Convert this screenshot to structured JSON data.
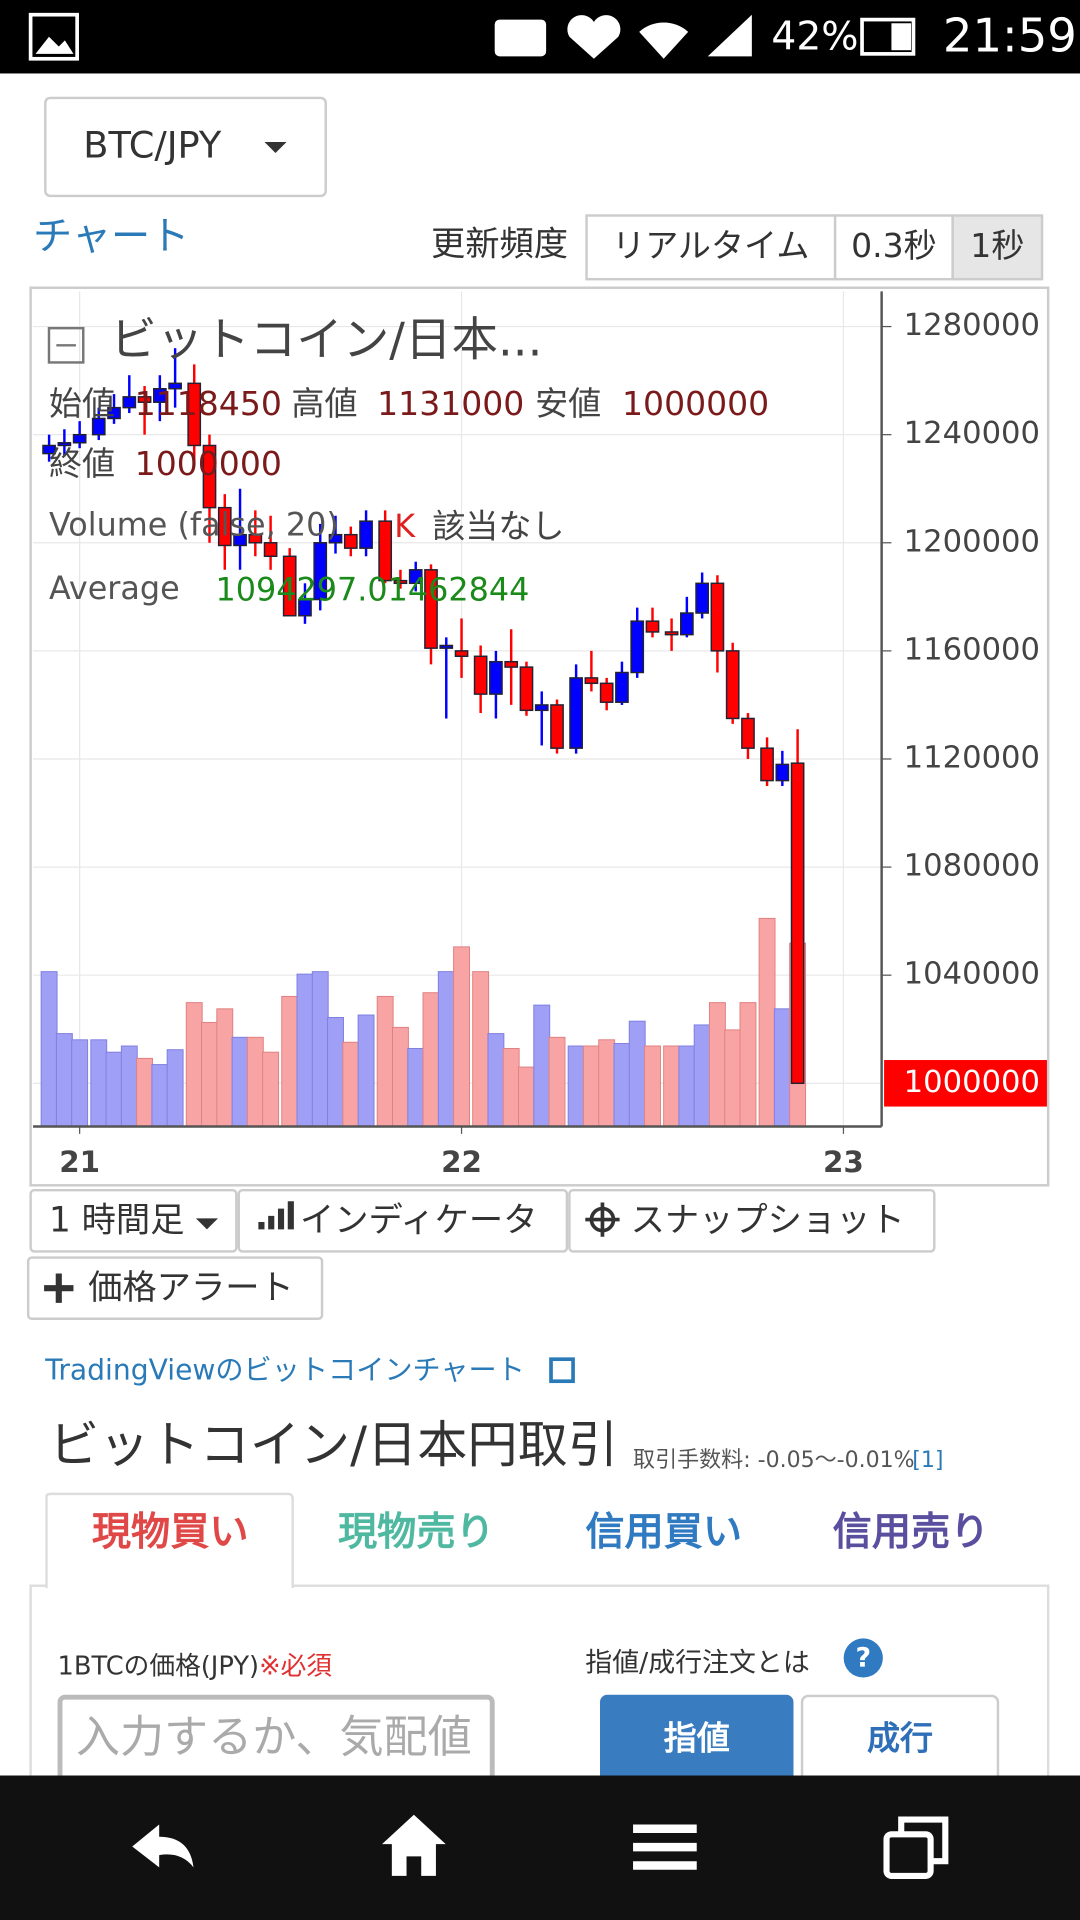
{
  "status_bar": {
    "time": "21:59",
    "battery": "42%"
  },
  "pair_selector": "BTC/JPY",
  "chart_heading": "チャート",
  "refresh": {
    "label": "更新頻度",
    "options": [
      "リアルタイム",
      "0.3秒",
      "1秒"
    ],
    "selected": 2
  },
  "chart_data": {
    "type": "candlestick",
    "title": "ビットコイン/日本...",
    "ohlc_legend": {
      "labels": [
        "始値",
        "高値",
        "安値",
        "終値"
      ],
      "values": [
        1118450,
        1131000,
        1000000,
        1000000
      ]
    },
    "volume_label": "Volume (false, 20)",
    "volume_unit": "K",
    "volume_value": "該当なし",
    "average_label": "Average",
    "average_value": 1094297.01462844,
    "x": [
      20.92,
      20.96,
      21.0,
      21.05,
      21.09,
      21.13,
      21.17,
      21.21,
      21.25,
      21.3,
      21.34,
      21.38,
      21.42,
      21.46,
      21.5,
      21.55,
      21.59,
      21.63,
      21.67,
      21.71,
      21.75,
      21.8,
      21.84,
      21.88,
      21.92,
      21.96,
      22.0,
      22.05,
      22.09,
      22.13,
      22.17,
      22.21,
      22.25,
      22.3,
      22.34,
      22.38,
      22.42,
      22.46,
      22.5,
      22.55,
      22.59,
      22.63,
      22.67,
      22.71,
      22.75,
      22.8,
      22.84,
      22.88
    ],
    "open": [
      1233000,
      1236000,
      1237000,
      1240000,
      1246000,
      1250000,
      1254000,
      1252000,
      1257000,
      1259000,
      1236000,
      1213000,
      1199000,
      1203000,
      1200000,
      1195000,
      1173000,
      1179000,
      1200000,
      1203000,
      1198000,
      1208000,
      1186000,
      1185000,
      1190000,
      1161000,
      1160000,
      1158000,
      1144000,
      1156000,
      1154000,
      1138000,
      1140000,
      1124000,
      1150000,
      1148000,
      1141000,
      1152000,
      1171000,
      1167000,
      1166000,
      1174000,
      1185000,
      1160000,
      1135000,
      1124000,
      1112000,
      1118450
    ],
    "high": [
      1240000,
      1242000,
      1245000,
      1250000,
      1255000,
      1262000,
      1258000,
      1262000,
      1272000,
      1266000,
      1240000,
      1218000,
      1220000,
      1212000,
      1210000,
      1198000,
      1185000,
      1207000,
      1210000,
      1206000,
      1212000,
      1212000,
      1190000,
      1193000,
      1192000,
      1165000,
      1172000,
      1162000,
      1160000,
      1168000,
      1156000,
      1145000,
      1142000,
      1155000,
      1160000,
      1150000,
      1156000,
      1176000,
      1176000,
      1172000,
      1180000,
      1189000,
      1188000,
      1163000,
      1137000,
      1128000,
      1123000,
      1131000
    ],
    "low": [
      1230000,
      1232000,
      1235000,
      1238000,
      1244000,
      1248000,
      1240000,
      1245000,
      1250000,
      1230000,
      1200000,
      1190000,
      1190000,
      1195000,
      1190000,
      1173000,
      1170000,
      1175000,
      1196000,
      1195000,
      1195000,
      1185000,
      1183000,
      1182000,
      1155000,
      1135000,
      1150000,
      1137000,
      1135000,
      1140000,
      1136000,
      1125000,
      1122000,
      1122000,
      1145000,
      1138000,
      1140000,
      1150000,
      1165000,
      1160000,
      1165000,
      1172000,
      1152000,
      1133000,
      1120000,
      1110000,
      1110000,
      1000000
    ],
    "close": [
      1236000,
      1237000,
      1240000,
      1246000,
      1250000,
      1254000,
      1252000,
      1257000,
      1259000,
      1236000,
      1213000,
      1199000,
      1203000,
      1200000,
      1195000,
      1173000,
      1179000,
      1200000,
      1203000,
      1198000,
      1208000,
      1186000,
      1185000,
      1190000,
      1161000,
      1162000,
      1158000,
      1144000,
      1156000,
      1154000,
      1138000,
      1140000,
      1124000,
      1150000,
      1148000,
      1141000,
      1152000,
      1171000,
      1167000,
      1166000,
      1174000,
      1185000,
      1160000,
      1135000,
      1124000,
      1112000,
      1118000,
      1000000
    ],
    "volume": [
      125,
      75,
      70,
      70,
      60,
      65,
      55,
      50,
      62,
      100,
      84,
      95,
      72,
      72,
      60,
      105,
      123,
      125,
      88,
      68,
      90,
      105,
      80,
      63,
      108,
      125,
      145,
      125,
      75,
      63,
      48,
      98,
      72,
      65,
      65,
      70,
      67,
      85,
      65,
      65,
      65,
      82,
      100,
      78,
      100,
      168,
      95,
      148
    ],
    "xlim": [
      20.878,
      23.1
    ],
    "xticks": [
      21,
      22,
      23
    ],
    "ylim": [
      984000,
      1293000
    ],
    "yticks": [
      1040000,
      1080000,
      1120000,
      1160000,
      1200000,
      1240000,
      1280000
    ],
    "last_price": 1000000,
    "last_price_color": "#ff0000",
    "up_color": "#0000ff",
    "down_color": "#ff0000",
    "volume_up_color": "#9f9ff5",
    "volume_down_color": "#f8a4a4",
    "grid": true
  },
  "toolbar": [
    "1 時間足",
    "インディケータ",
    "スナップショット",
    "価格アラート"
  ],
  "tradingview_link": "TradingViewのビットコインチャート",
  "trade": {
    "title": "ビットコイン/日本円取引",
    "fee": "取引手数料: -0.05〜-0.01%",
    "fee_ref": "[1]",
    "tabs": [
      "現物買い",
      "現物売り",
      "信用買い",
      "信用売り"
    ],
    "tab_colors": [
      "#e04848",
      "#4fb8a0",
      "#2f7ac0",
      "#5a4f9e"
    ],
    "active_tab": 0,
    "price_label": "1BTCの価格(JPY)",
    "required": "※必須",
    "placeholder": "入力するか、気配値",
    "order_help": "指値/成行注文とは",
    "help_icon": "?",
    "order_types": [
      "指値",
      "成行"
    ]
  }
}
